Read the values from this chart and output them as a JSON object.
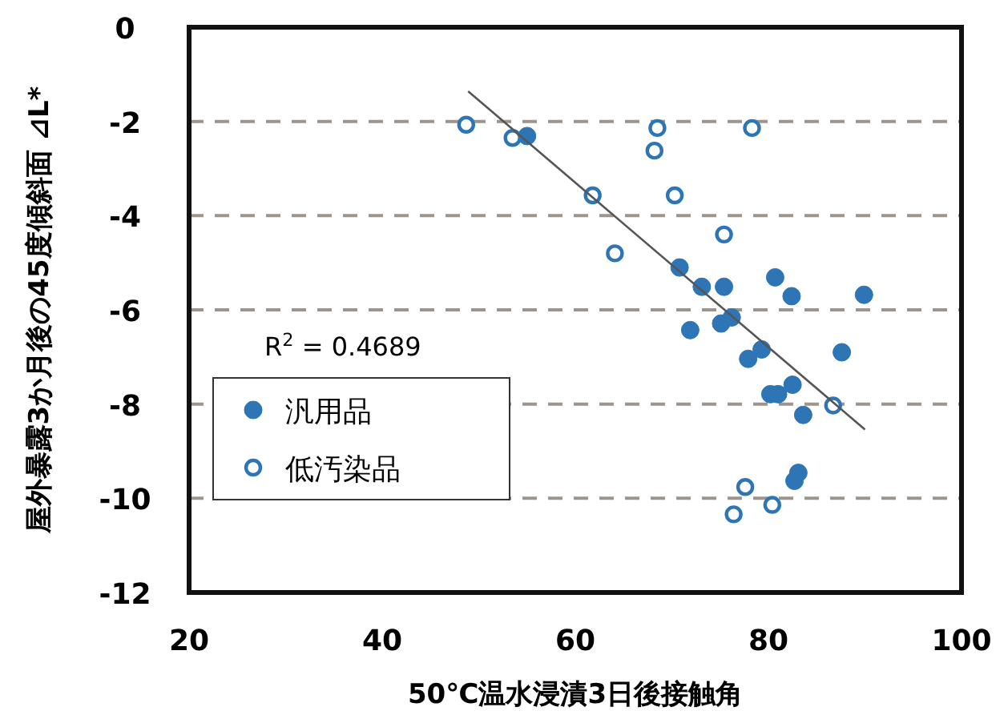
{
  "chart_data": {
    "type": "scatter",
    "xlabel": "50℃温水浸漬3日後接触角",
    "ylabel": "屋外暴露3か月後の45度傾斜面 ⊿L*",
    "xlim": [
      20,
      100
    ],
    "ylim": [
      -12,
      0
    ],
    "xticks": [
      20,
      40,
      60,
      80,
      100
    ],
    "yticks": [
      -12,
      -10,
      -8,
      -6,
      -4,
      -2,
      0
    ],
    "grid": "y",
    "legend": "bottom left",
    "annotations": [
      "R$^{2}$ = 0.4689"
    ],
    "series": [
      {
        "name": "汎用品",
        "color": "#2e75b6",
        "marker": "circle",
        "x": [
          55.0,
          70.8,
          73.1,
          75.4,
          80.7,
          82.4,
          89.9,
          71.9,
          75.1,
          76.2,
          79.3,
          77.9,
          87.6,
          80.2,
          81.0,
          82.5,
          83.6,
          82.7,
          83.1
        ],
        "values": [
          -2.31,
          -5.1,
          -5.51,
          -5.51,
          -5.31,
          -5.71,
          -5.68,
          -6.43,
          -6.29,
          -6.16,
          -6.84,
          -7.04,
          -6.9,
          -7.79,
          -7.79,
          -7.59,
          -8.23,
          -9.63,
          -9.46
        ]
      },
      {
        "name": "低汚染品",
        "color": "#2e75b6",
        "marker": "circle",
        "x": [
          48.7,
          53.5,
          68.5,
          68.2,
          61.8,
          70.3,
          64.1,
          75.4,
          78.3,
          86.7,
          77.6,
          80.4,
          76.4
        ],
        "values": [
          -2.07,
          -2.35,
          -2.14,
          -2.62,
          -3.57,
          -3.57,
          -4.8,
          -4.4,
          -2.14,
          -8.03,
          -9.76,
          -10.14,
          -10.34
        ]
      },
      {
        "type": "line",
        "color": "#555555",
        "marker": "none",
        "x": [
          48.9,
          90.0
        ],
        "values": [
          -1.36,
          -8.54
        ]
      }
    ]
  }
}
